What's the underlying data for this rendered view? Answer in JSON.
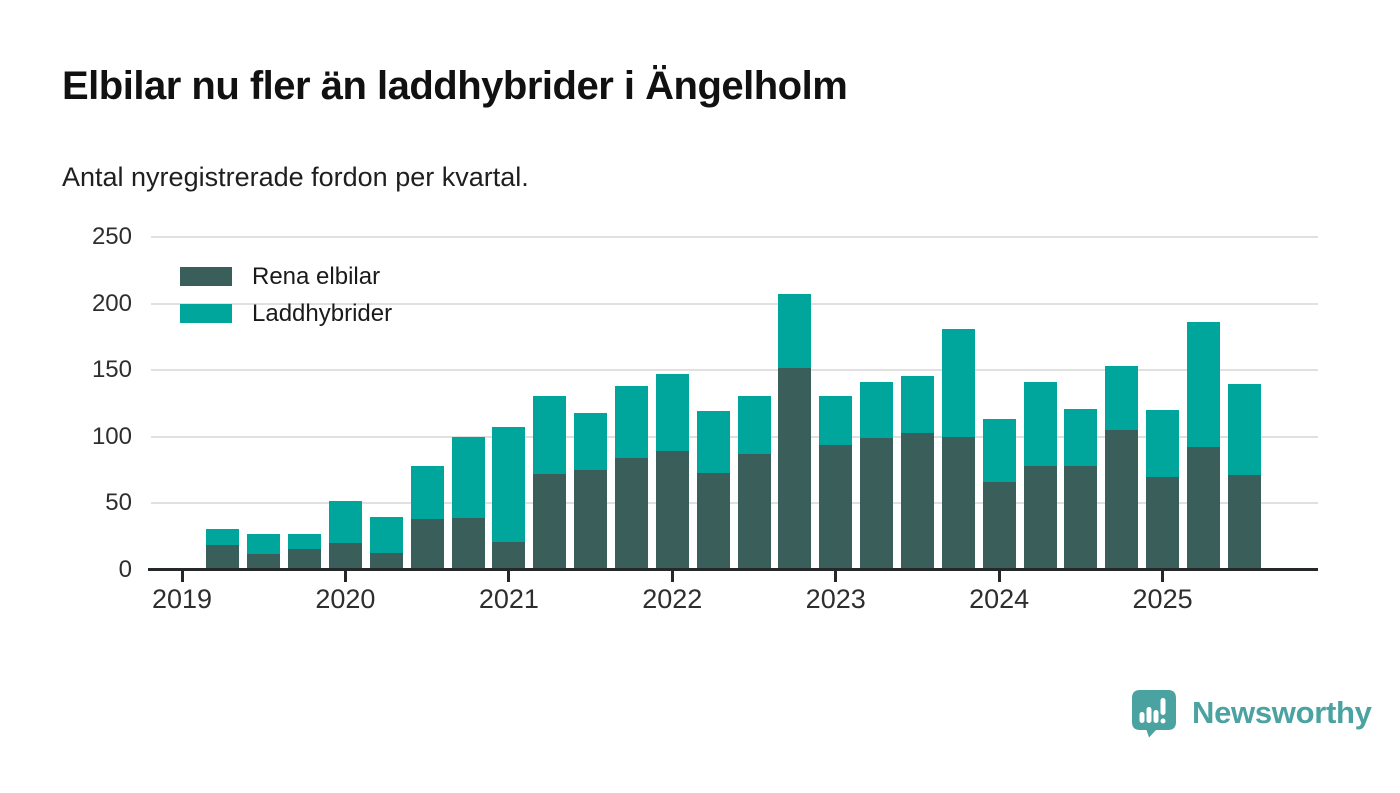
{
  "header": {
    "title": "Elbilar nu fler än laddhybrider i Ängelholm",
    "subtitle": "Antal nyregistrerade fordon per kvartal."
  },
  "chart_data": {
    "type": "bar",
    "stacked": true,
    "title": "Elbilar nu fler än laddhybrider i Ängelholm",
    "subtitle": "Antal nyregistrerade fordon per kvartal.",
    "categories": [
      "2019 Q2",
      "2019 Q3",
      "2019 Q4",
      "2020 Q1",
      "2020 Q2",
      "2020 Q3",
      "2020 Q4",
      "2021 Q1",
      "2021 Q2",
      "2021 Q3",
      "2021 Q4",
      "2022 Q1",
      "2022 Q2",
      "2022 Q3",
      "2022 Q4",
      "2023 Q1",
      "2023 Q2",
      "2023 Q3",
      "2023 Q4",
      "2024 Q1",
      "2024 Q2",
      "2024 Q3",
      "2024 Q4",
      "2025 Q1",
      "2025 Q2",
      "2025 Q3"
    ],
    "series": [
      {
        "name": "Rena elbilar",
        "color": "#3a5f5b",
        "values": [
          19,
          12,
          16,
          20,
          13,
          38,
          39,
          21,
          72,
          75,
          84,
          89,
          73,
          87,
          152,
          94,
          99,
          103,
          100,
          66,
          78,
          78,
          105,
          70,
          92,
          71
        ]
      },
      {
        "name": "Laddhybrider",
        "color": "#00a59b",
        "values": [
          12,
          15,
          11,
          32,
          27,
          40,
          61,
          86,
          59,
          43,
          54,
          58,
          46,
          44,
          55,
          37,
          42,
          43,
          81,
          47,
          63,
          43,
          48,
          50,
          94,
          69
        ]
      }
    ],
    "ylim": [
      0,
      250
    ],
    "yticks": [
      0,
      50,
      100,
      150,
      200,
      250
    ],
    "x_year_labels": [
      "2019",
      "2020",
      "2021",
      "2022",
      "2023",
      "2024",
      "2025"
    ],
    "quarters_per_year": 4,
    "first_bar_quarter_offset": 1,
    "grid": "horizontal",
    "legend_position": "inside-top-left"
  },
  "footer": {
    "brand": "Newsworthy"
  },
  "colors": {
    "axis": "#25282a",
    "grid": "#e0e0e0",
    "text": "#1a1a1a",
    "brand": "#4aa2a1"
  }
}
